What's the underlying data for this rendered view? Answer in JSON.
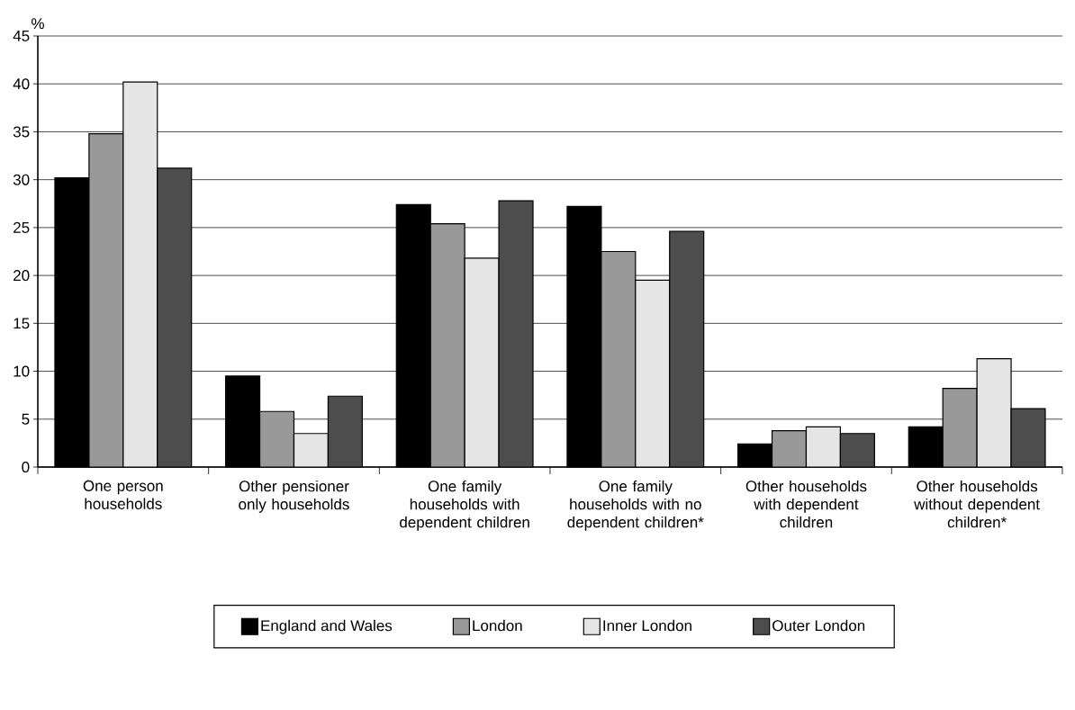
{
  "chart_data": {
    "type": "bar",
    "ylabel": "%",
    "categories": [
      "One person households",
      "Other pensioner only households",
      "One family households with dependent children",
      "One family households with no dependent children*",
      "Other households with dependent children",
      "Other households without dependent children*"
    ],
    "series": [
      {
        "name": "England and Wales",
        "color": "#000000",
        "values": [
          30.2,
          9.5,
          27.4,
          27.2,
          2.4,
          4.2
        ]
      },
      {
        "name": "London",
        "color": "#999999",
        "values": [
          34.8,
          5.8,
          25.4,
          22.5,
          3.8,
          8.2
        ]
      },
      {
        "name": "Inner London",
        "color": "#e5e5e5",
        "values": [
          40.2,
          3.5,
          21.8,
          19.5,
          4.2,
          11.3
        ]
      },
      {
        "name": "Outer London",
        "color": "#4d4d4d",
        "values": [
          31.2,
          7.4,
          27.8,
          24.6,
          3.5,
          6.1
        ]
      }
    ],
    "ylim": [
      0,
      45
    ],
    "yticks": [
      0,
      5,
      10,
      15,
      20,
      25,
      30,
      35,
      40,
      45
    ],
    "grid": "y",
    "legend": "bottom"
  }
}
